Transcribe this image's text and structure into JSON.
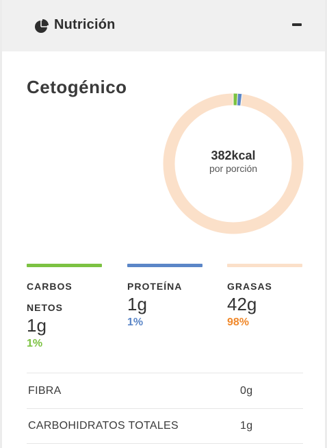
{
  "header": {
    "title": "Nutrición",
    "icon": "pie-chart-icon",
    "collapse_icon": "minus-icon"
  },
  "diet_name": "Cetogénico",
  "summary": {
    "calories": "382kcal",
    "per_serving": "por porción"
  },
  "chart_data": {
    "type": "pie",
    "categories": [
      "CARBOS NETOS",
      "PROTEÍNA",
      "GRASAS"
    ],
    "values": [
      1,
      1,
      98
    ],
    "colors": [
      "#7cc242",
      "#5b86c7",
      "#fbe0c9"
    ]
  },
  "macros": [
    {
      "label": "CARBOS NETOS",
      "amount": "1g",
      "percent": "1%",
      "color": "#7cc242",
      "pct_color": "#7cc242"
    },
    {
      "label": "PROTEÍNA",
      "amount": "1g",
      "percent": "1%",
      "color": "#5b86c7",
      "pct_color": "#5b86c7"
    },
    {
      "label": "GRASAS",
      "amount": "42g",
      "percent": "98%",
      "color": "#fbe0c9",
      "pct_color": "#f0882a"
    }
  ],
  "nutrients": [
    {
      "name": "FIBRA",
      "value": "0g"
    },
    {
      "name": "CARBOHIDRATOS TOTALES",
      "value": "1g"
    }
  ]
}
